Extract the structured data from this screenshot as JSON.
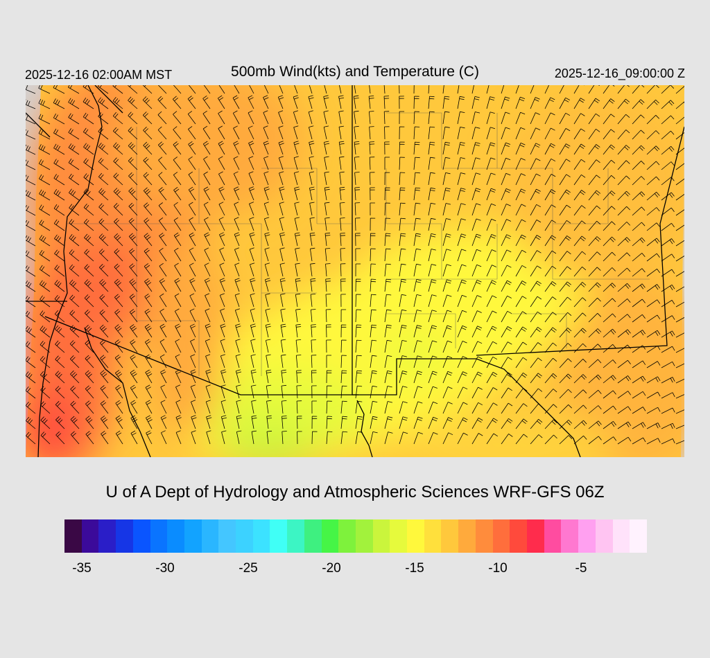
{
  "header": {
    "valid_local": "2025-12-16 02:00AM MST",
    "title": "500mb Wind(kts) and Temperature (C)",
    "valid_utc": "2025-12-16_09:00:00 Z"
  },
  "map": {
    "region": "Southwestern United States",
    "field": "500mb temperature",
    "overlay": "wind barbs",
    "colors": {
      "background": "#e5e5e5",
      "ocean_land_outside": "#d3d3d3",
      "outline": "#000000"
    }
  },
  "credit": "U of A Dept of Hydrology and Atmospheric Sciences WRF-GFS 06Z",
  "colorbar": {
    "colors": [
      "#3a0845",
      "#3b0a9a",
      "#2a1ec8",
      "#1636e6",
      "#0a55ff",
      "#0a74ff",
      "#0a8cff",
      "#12a3ff",
      "#2ab6ff",
      "#44c6ff",
      "#3cd2ff",
      "#3ce2ff",
      "#40fff6",
      "#3cf5c4",
      "#3ef080",
      "#46f546",
      "#7ef23c",
      "#a2f23c",
      "#caf53c",
      "#e6fa3c",
      "#fff83c",
      "#ffe03c",
      "#ffc83c",
      "#ffaa3c",
      "#ff8c3c",
      "#ff6e3c",
      "#ff4a3c",
      "#ff2c4c",
      "#ff4ca0",
      "#ff78d0",
      "#ffa0f0",
      "#ffc4f2",
      "#ffe2fa",
      "#fff2fe"
    ],
    "tick_labels": [
      "-35",
      "-30",
      "-25",
      "-20",
      "-15",
      "-10",
      "-5"
    ]
  }
}
